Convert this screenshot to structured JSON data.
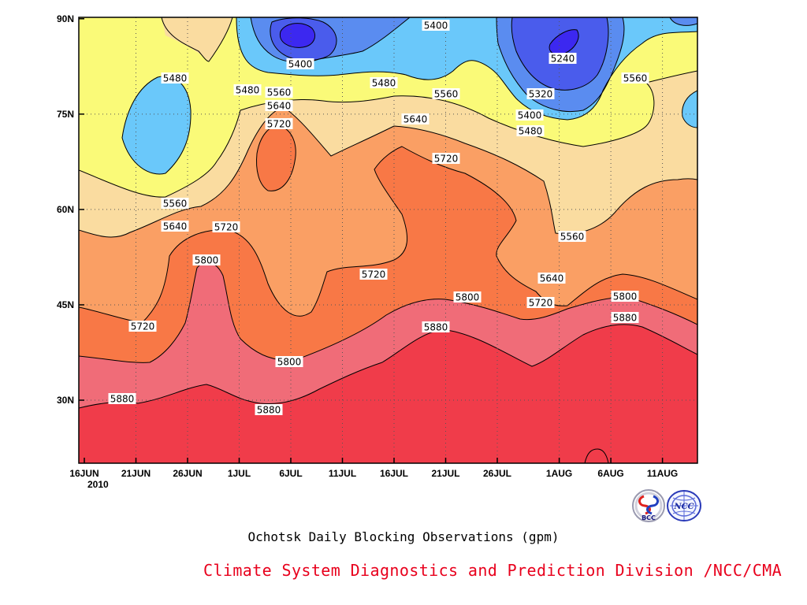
{
  "caption": "Ochotsk Daily Blocking Observations (gpm)",
  "credit": "Climate System Diagnostics and Prediction Division /NCC/CMA",
  "credit_color": "#e8001c",
  "logos": {
    "bcc": {
      "text": "BCC",
      "icon": "bcc-logo-icon"
    },
    "ncc": {
      "text": "NCC",
      "icon": "ncc-logo-icon"
    }
  },
  "chart_data": {
    "type": "heatmap",
    "subtype": "filled contour (time-latitude)",
    "title": "Ochotsk Daily Blocking Observations (gpm)",
    "x_axis": {
      "ticks": [
        "16JUN",
        "21JUN",
        "26JUN",
        "1JUL",
        "6JUL",
        "11JUL",
        "16JUL",
        "21JUL",
        "26JUL",
        "1AUG",
        "6AUG",
        "11AUG"
      ],
      "year_label": "2010"
    },
    "y_axis": {
      "ticks": [
        "30N",
        "45N",
        "60N",
        "75N",
        "90N"
      ]
    },
    "grid": "dotted",
    "levels": [
      5240,
      5320,
      5400,
      5480,
      5560,
      5640,
      5720,
      5800,
      5880
    ],
    "band_colors": {
      "below_5240": "#3c28f0",
      "5240_5320": "#4a5cec",
      "5320_5400": "#5a8cf0",
      "5400_5480": "#6ac8fa",
      "5480_5560": "#fafa78",
      "5560_5640": "#fadca0",
      "5640_5720": "#fa9f64",
      "5720_5800": "#f87846",
      "5800_5880": "#f06c78",
      "above_5880": "#f03c4a"
    },
    "contour_labels": [
      {
        "value": "5400",
        "date": "6JUL"
      },
      {
        "value": "5400",
        "date": "20JUL"
      },
      {
        "value": "5240",
        "date": "2AUG"
      },
      {
        "value": "5320",
        "date": "30JUL"
      },
      {
        "value": "5400",
        "date": "28JUL"
      },
      {
        "value": "5480",
        "date": "28JUL"
      },
      {
        "value": "5480",
        "date": "23JUN"
      },
      {
        "value": "5480",
        "date": "1JUL"
      },
      {
        "value": "5480",
        "date": "15JUL"
      },
      {
        "value": "5560",
        "date": "3JUL"
      },
      {
        "value": "5560",
        "date": "20JUL"
      },
      {
        "value": "5560",
        "date": "7AUG"
      },
      {
        "value": "5640",
        "date": "3JUL"
      },
      {
        "value": "5720",
        "date": "3JUL"
      },
      {
        "value": "5640",
        "date": "16JUL"
      },
      {
        "value": "5720",
        "date": "20JUL"
      },
      {
        "value": "5560",
        "date": "23JUN"
      },
      {
        "value": "5640",
        "date": "23JUN"
      },
      {
        "value": "5720",
        "date": "27JUN"
      },
      {
        "value": "5800",
        "date": "26JUN"
      },
      {
        "value": "5720",
        "date": "20JUN"
      },
      {
        "value": "5720",
        "date": "13JUL"
      },
      {
        "value": "5560",
        "date": "1AUG"
      },
      {
        "value": "5640",
        "date": "29JUL"
      },
      {
        "value": "5720",
        "date": "27JUL"
      },
      {
        "value": "5800",
        "date": "21JUL"
      },
      {
        "value": "5800",
        "date": "7AUG"
      },
      {
        "value": "5880",
        "date": "7AUG"
      },
      {
        "value": "5880",
        "date": "19JUL"
      },
      {
        "value": "5800",
        "date": "6JUL"
      },
      {
        "value": "5880",
        "date": "3JUL"
      },
      {
        "value": "5880",
        "date": "18JUN"
      }
    ]
  }
}
